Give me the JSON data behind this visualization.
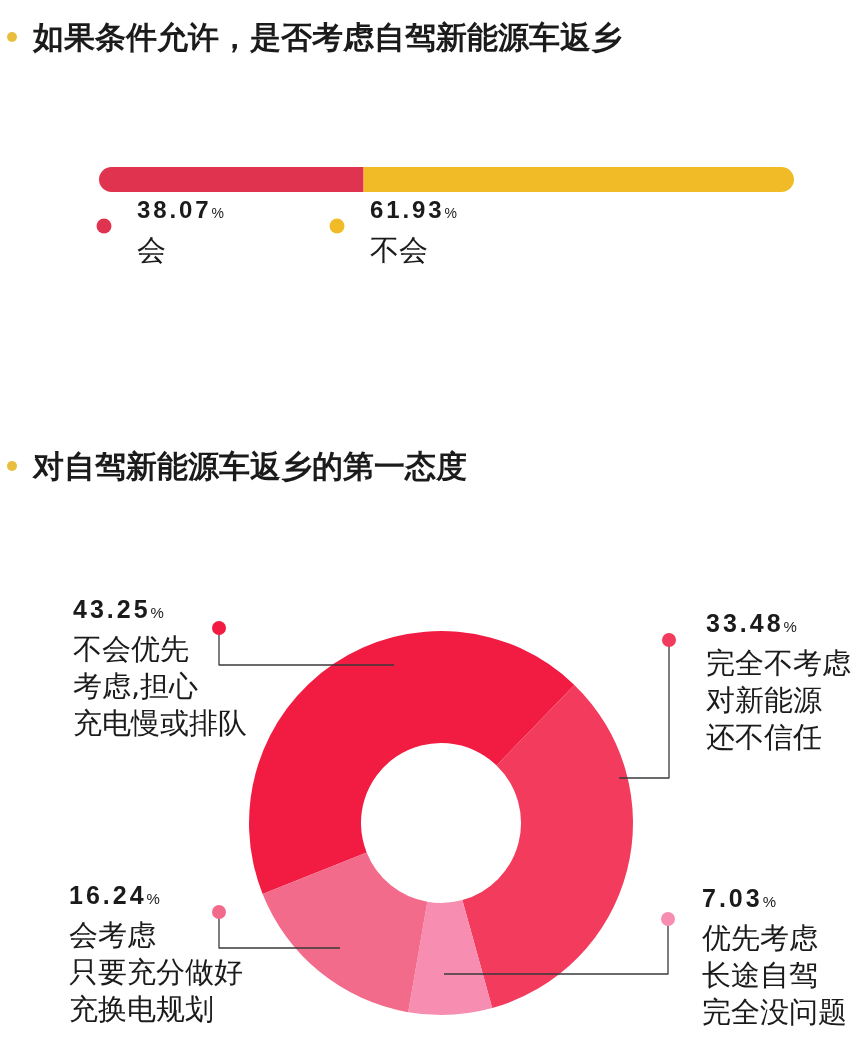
{
  "chart_data": [
    {
      "type": "bar",
      "orientation": "horizontal",
      "stacked": true,
      "title": "如果条件允许，是否考虑自驾新能源车返乡",
      "categories": [
        null
      ],
      "legend": "bottom",
      "series": [
        {
          "name": "会",
          "color": "#e0334f",
          "values": [
            38.07
          ],
          "value_labels": [
            "38.07%"
          ]
        },
        {
          "name": "不会",
          "color": "#f0bb27",
          "values": [
            61.93
          ],
          "value_labels": [
            "61.93%"
          ]
        }
      ]
    },
    {
      "type": "donut",
      "title": "对自驾新能源车返乡的第一态度",
      "legend": "left",
      "categories": [
        "不会优先考虑,担心充电慢或排队",
        "完全不考虑对新能源还不信任",
        "优先考虑长途自驾完全没问题",
        "会考虑只要充分做好充换电规划"
      ],
      "values": [
        43.25,
        33.48,
        7.03,
        16.24
      ],
      "colors": [
        "#f21b42",
        "#f23b5d",
        "#f78db0",
        "#f36b8a"
      ],
      "value_labels": [
        "43.25%",
        "33.48%",
        "7.03%",
        "16.24%"
      ]
    }
  ]
}
